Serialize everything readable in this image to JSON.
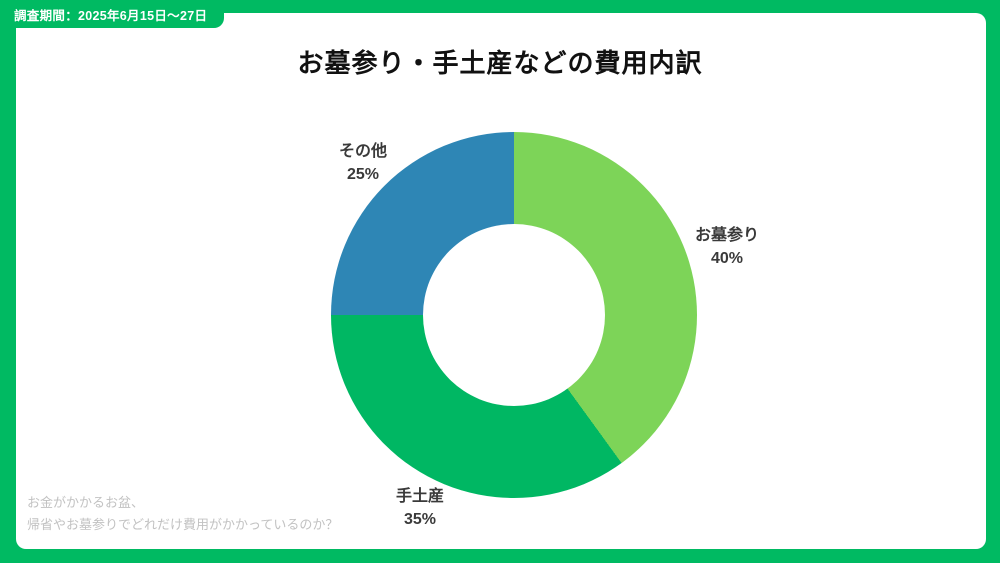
{
  "page": {
    "badge": "調査期間：2025年6月15日～27日",
    "title": "お墓参り・手土産などの費用内訳",
    "footnote_line1": "お金がかかるお盆、",
    "footnote_line2": "帰省やお墓参りでどれだけ費用がかかっているのか？"
  },
  "colors": {
    "frame_green": "#00BA62",
    "slice_light_green": "#7DD458",
    "slice_dark_green": "#00B763",
    "slice_blue": "#2E86B5",
    "label_text": "#3A3A3A",
    "footnote_text": "#C2C2C2",
    "title_text": "#111111"
  },
  "chart_data": {
    "type": "pie",
    "subtype": "donut",
    "title": "お墓参り・手土産などの費用内訳",
    "start_angle_deg": 0,
    "direction": "clockwise",
    "inner_radius_ratio": 0.5,
    "legend_position": "outside-labels",
    "segments": [
      {
        "label": "お墓参り",
        "value": 40,
        "percent_text": "40%",
        "color": "#7DD458"
      },
      {
        "label": "手土産",
        "value": 35,
        "percent_text": "35%",
        "color": "#00B763"
      },
      {
        "label": "その他",
        "value": 25,
        "percent_text": "25%",
        "color": "#2E86B5"
      }
    ]
  }
}
